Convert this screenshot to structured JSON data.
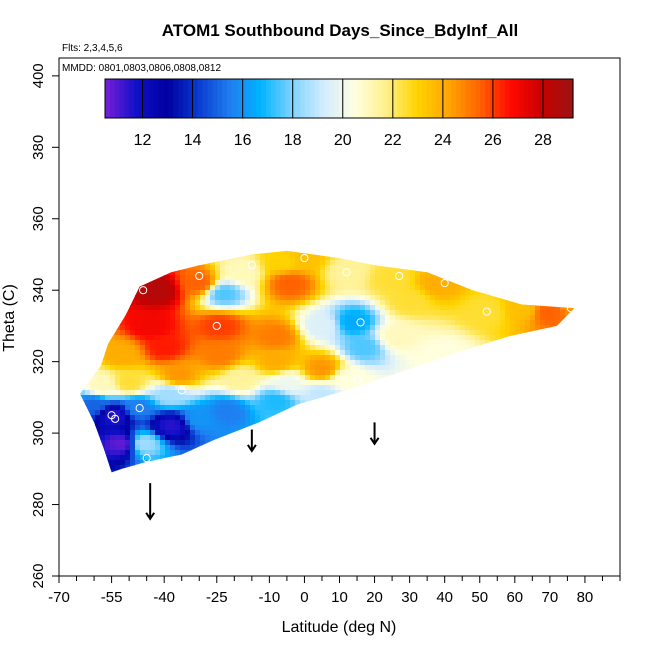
{
  "chart_data": {
    "type": "heatmap",
    "title": "ATOM1 Southbound Days_Since_BdyInf_All",
    "flights_note": "Flts: 2,3,4,5,6",
    "mmdd_note": "MMDD: 0801,0803,0806,0808,0812",
    "xlabel": "Latitude (deg N)",
    "ylabel": "Theta (C)",
    "xlim": [
      -70,
      90
    ],
    "ylim": [
      260,
      405
    ],
    "x_ticks": [
      -70,
      -55,
      -40,
      -25,
      -10,
      0,
      10,
      20,
      30,
      40,
      50,
      60,
      70,
      80
    ],
    "x_tick_labels": [
      "-70",
      "-55",
      "-40",
      "-25",
      "-10",
      "0",
      "10",
      "20",
      "30",
      "40",
      "50",
      "60",
      "70",
      "80"
    ],
    "y_ticks": [
      260,
      280,
      300,
      320,
      340,
      360,
      380,
      400
    ],
    "y_tick_labels": [
      "260",
      "280",
      "300",
      "320",
      "340",
      "360",
      "380",
      "400"
    ],
    "colorbar": {
      "min": 10.5,
      "max": 29.2,
      "ticks": [
        12,
        14,
        16,
        18,
        20,
        22,
        24,
        26,
        28
      ],
      "tick_labels": [
        "12",
        "14",
        "16",
        "18",
        "20",
        "22",
        "24",
        "26",
        "28"
      ],
      "colors": [
        "#7a1fd8",
        "#1010c8",
        "#0000a0",
        "#0a3bd0",
        "#1f7ef0",
        "#00b4ff",
        "#7fd2ff",
        "#d2ecff",
        "#ffffe0",
        "#fff08c",
        "#ffd400",
        "#ffa500",
        "#ff6400",
        "#ff0a00",
        "#c80000",
        "#9c1414"
      ]
    },
    "field_outline": [
      [
        -55,
        289
      ],
      [
        -57,
        295
      ],
      [
        -60,
        303
      ],
      [
        -64,
        311
      ],
      [
        -58,
        319
      ],
      [
        -56,
        325
      ],
      [
        -51,
        333
      ],
      [
        -47,
        341
      ],
      [
        -38,
        345
      ],
      [
        -30,
        347
      ],
      [
        -15,
        350
      ],
      [
        -5,
        351
      ],
      [
        10,
        349
      ],
      [
        20,
        347
      ],
      [
        35,
        345
      ],
      [
        48,
        340
      ],
      [
        62,
        336
      ],
      [
        77,
        335
      ],
      [
        72,
        330
      ],
      [
        58,
        327
      ],
      [
        45,
        323
      ],
      [
        30,
        318
      ],
      [
        12,
        312
      ],
      [
        -2,
        308
      ],
      [
        -13,
        303
      ],
      [
        -26,
        298
      ],
      [
        -35,
        294
      ],
      [
        -45,
        292
      ],
      [
        -52,
        290
      ],
      [
        -55,
        289
      ]
    ],
    "control_points": [
      {
        "lat": -52,
        "theta": 297,
        "value": 10.8
      },
      {
        "lat": -54,
        "theta": 305,
        "value": 11.5
      },
      {
        "lat": -60,
        "theta": 308,
        "value": 15
      },
      {
        "lat": -46,
        "theta": 297,
        "value": 18.5
      },
      {
        "lat": -48,
        "theta": 307,
        "value": 15.5
      },
      {
        "lat": -38,
        "theta": 302,
        "value": 11.5
      },
      {
        "lat": -30,
        "theta": 304,
        "value": 16
      },
      {
        "lat": -38,
        "theta": 311,
        "value": 18.5
      },
      {
        "lat": -22,
        "theta": 306,
        "value": 15.5
      },
      {
        "lat": -8,
        "theta": 309,
        "value": 17
      },
      {
        "lat": 5,
        "theta": 311,
        "value": 19
      },
      {
        "lat": -58,
        "theta": 313,
        "value": 21
      },
      {
        "lat": -50,
        "theta": 314,
        "value": 22.5
      },
      {
        "lat": -36,
        "theta": 316,
        "value": 24.5
      },
      {
        "lat": -18,
        "theta": 315,
        "value": 21.5
      },
      {
        "lat": -5,
        "theta": 314,
        "value": 20
      },
      {
        "lat": 12,
        "theta": 315,
        "value": 20.5
      },
      {
        "lat": -52,
        "theta": 322,
        "value": 24
      },
      {
        "lat": -40,
        "theta": 324,
        "value": 26.5
      },
      {
        "lat": -24,
        "theta": 322,
        "value": 25
      },
      {
        "lat": -8,
        "theta": 320,
        "value": 24
      },
      {
        "lat": 5,
        "theta": 318,
        "value": 24.5
      },
      {
        "lat": -44,
        "theta": 330,
        "value": 27
      },
      {
        "lat": -24,
        "theta": 330,
        "value": 26
      },
      {
        "lat": -8,
        "theta": 327,
        "value": 25
      },
      {
        "lat": 5,
        "theta": 330,
        "value": 19.5
      },
      {
        "lat": 14,
        "theta": 331,
        "value": 16.5
      },
      {
        "lat": 17,
        "theta": 324,
        "value": 17.5
      },
      {
        "lat": -42,
        "theta": 340,
        "value": 28.5
      },
      {
        "lat": -30,
        "theta": 342,
        "value": 25.5
      },
      {
        "lat": -23,
        "theta": 339,
        "value": 17.5
      },
      {
        "lat": -18,
        "theta": 345,
        "value": 21
      },
      {
        "lat": -4,
        "theta": 342,
        "value": 25.5
      },
      {
        "lat": -6,
        "theta": 348,
        "value": 23
      },
      {
        "lat": 0,
        "theta": 349,
        "value": 23.5
      },
      {
        "lat": 12,
        "theta": 345,
        "value": 21.5
      },
      {
        "lat": 25,
        "theta": 343,
        "value": 22.5
      },
      {
        "lat": 38,
        "theta": 342,
        "value": 24
      },
      {
        "lat": 30,
        "theta": 337,
        "value": 22.5
      },
      {
        "lat": 26,
        "theta": 327,
        "value": 21
      },
      {
        "lat": 40,
        "theta": 322,
        "value": 20.5
      },
      {
        "lat": 52,
        "theta": 334,
        "value": 22.5
      },
      {
        "lat": 62,
        "theta": 335,
        "value": 23.5
      },
      {
        "lat": 70,
        "theta": 334,
        "value": 25.5
      },
      {
        "lat": 76,
        "theta": 336,
        "value": 24.5
      }
    ],
    "observation_circles": [
      {
        "lat": -55,
        "theta": 305
      },
      {
        "lat": -54,
        "theta": 304
      },
      {
        "lat": -47,
        "theta": 307
      },
      {
        "lat": -45,
        "theta": 293
      },
      {
        "lat": -35,
        "theta": 312
      },
      {
        "lat": -46,
        "theta": 340
      },
      {
        "lat": -30,
        "theta": 344
      },
      {
        "lat": -25,
        "theta": 330
      },
      {
        "lat": -15,
        "theta": 347
      },
      {
        "lat": 0,
        "theta": 349
      },
      {
        "lat": 12,
        "theta": 345
      },
      {
        "lat": 16,
        "theta": 331
      },
      {
        "lat": 15,
        "theta": 315
      },
      {
        "lat": 27,
        "theta": 344
      },
      {
        "lat": 40,
        "theta": 342
      },
      {
        "lat": 52,
        "theta": 334
      },
      {
        "lat": 76,
        "theta": 335
      }
    ],
    "arrows": [
      {
        "lat": -44,
        "theta_top": 286,
        "theta_tip": 276
      },
      {
        "lat": -15,
        "theta_top": 301,
        "theta_tip": 295
      },
      {
        "lat": 20,
        "theta_top": 303,
        "theta_tip": 297
      }
    ]
  }
}
